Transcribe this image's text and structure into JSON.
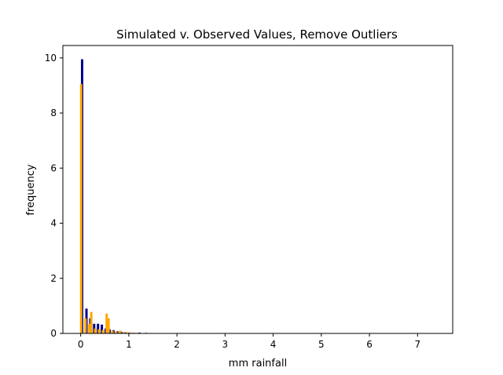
{
  "chart_data": {
    "type": "bar",
    "title": "Simulated v. Observed Values, Remove Outliers",
    "xlabel": "mm rainfall",
    "ylabel": "frequency",
    "xlim": [
      -0.37,
      7.73
    ],
    "ylim": [
      0,
      10.45
    ],
    "xticks": [
      "0",
      "1",
      "2",
      "3",
      "4",
      "5",
      "6",
      "7"
    ],
    "yticks": [
      "0",
      "2",
      "4",
      "6",
      "8",
      "10"
    ],
    "grid": false,
    "legend": "none",
    "series": [
      {
        "color": "#00008b",
        "bars": [
          {
            "x": 0.03,
            "value": 9.95
          },
          {
            "x": 0.12,
            "value": 0.9
          },
          {
            "x": 0.2,
            "value": 0.55
          },
          {
            "x": 0.28,
            "value": 0.35
          },
          {
            "x": 0.36,
            "value": 0.35
          },
          {
            "x": 0.44,
            "value": 0.32
          },
          {
            "x": 0.52,
            "value": 0.18
          },
          {
            "x": 0.6,
            "value": 0.15
          },
          {
            "x": 0.68,
            "value": 0.12
          },
          {
            "x": 0.76,
            "value": 0.08
          },
          {
            "x": 0.84,
            "value": 0.06
          },
          {
            "x": 0.92,
            "value": 0.04
          },
          {
            "x": 1.0,
            "value": 0.03
          },
          {
            "x": 1.1,
            "value": 0.02
          },
          {
            "x": 1.22,
            "value": 0.03
          },
          {
            "x": 1.36,
            "value": 0.02
          }
        ]
      },
      {
        "color": "#ffa500",
        "bars": [
          {
            "x": 0.01,
            "value": 9.05
          },
          {
            "x": 0.1,
            "value": 0.55
          },
          {
            "x": 0.18,
            "value": 0.35
          },
          {
            "x": 0.22,
            "value": 0.78
          },
          {
            "x": 0.3,
            "value": 0.18
          },
          {
            "x": 0.38,
            "value": 0.15
          },
          {
            "x": 0.46,
            "value": 0.12
          },
          {
            "x": 0.54,
            "value": 0.72
          },
          {
            "x": 0.58,
            "value": 0.55
          },
          {
            "x": 0.66,
            "value": 0.1
          },
          {
            "x": 0.74,
            "value": 0.07
          },
          {
            "x": 0.82,
            "value": 0.1
          },
          {
            "x": 0.9,
            "value": 0.05
          },
          {
            "x": 0.98,
            "value": 0.04
          },
          {
            "x": 1.06,
            "value": 0.03
          },
          {
            "x": 1.15,
            "value": 0.02
          }
        ]
      }
    ]
  }
}
